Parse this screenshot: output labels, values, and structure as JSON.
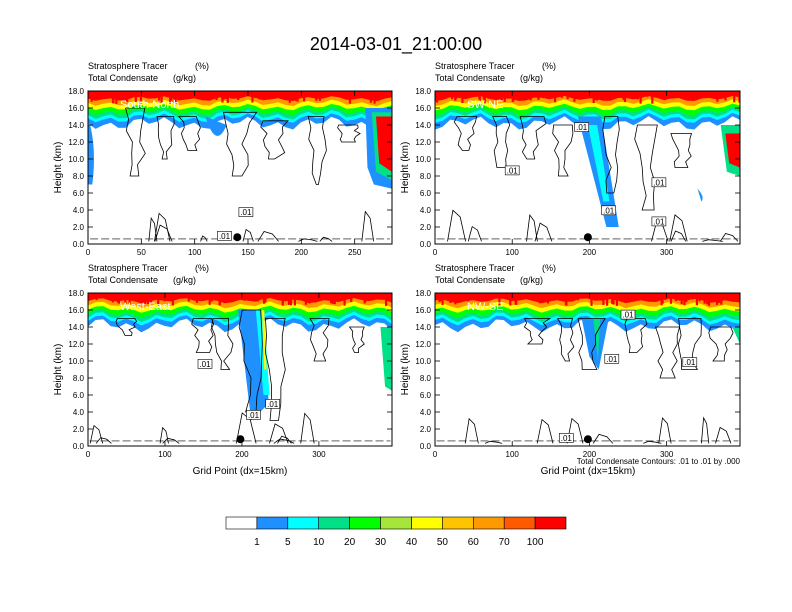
{
  "title": "2014-03-01_21:00:00",
  "footnote": "Total Condensate Contours: .01 to .01 by .000",
  "chart_data": [
    {
      "type": "heatmap",
      "panel_label": "South-North",
      "title_left_1": "Stratosphere Tracer",
      "units_1": "(%)",
      "title_left_2": "Total Condensate",
      "units_2": "(g/kg)",
      "ylabel": "Height (km)",
      "xlabel": "",
      "xlim": [
        0,
        285
      ],
      "ylim": [
        0,
        18
      ],
      "xticks": [
        0,
        50,
        100,
        150,
        200,
        250
      ],
      "yticks": [
        0,
        2,
        4,
        6,
        8,
        10,
        12,
        14,
        16,
        18
      ],
      "ytick_labels": [
        "0.0",
        "2.0",
        "4.0",
        "6.0",
        "8.0",
        "10.0",
        "12.0",
        "14.0",
        "16.0",
        "18.0"
      ],
      "contour_label_values": [
        ".01",
        ".01"
      ],
      "marker_x": 140
    },
    {
      "type": "heatmap",
      "panel_label": "SW-NE",
      "title_left_1": "Stratosphere Tracer",
      "units_1": "(%)",
      "title_left_2": "Total Condensate",
      "units_2": "(g/kg)",
      "ylabel": "Height (km)",
      "xlabel": "",
      "xlim": [
        0,
        395
      ],
      "ylim": [
        0,
        18
      ],
      "xticks": [
        0,
        100,
        200,
        300
      ],
      "yticks": [
        0,
        2,
        4,
        6,
        8,
        10,
        12,
        14,
        16,
        18
      ],
      "ytick_labels": [
        "0.0",
        "2.0",
        "4.0",
        "6.0",
        "8.0",
        "10.0",
        "12.0",
        "14.0",
        "16.0",
        "18.0"
      ],
      "contour_label_values": [
        ".01",
        ".01",
        ".01",
        ".01",
        ".01"
      ],
      "marker_x": 198
    },
    {
      "type": "heatmap",
      "panel_label": "West-East",
      "title_left_1": "Stratosphere Tracer",
      "units_1": "(%)",
      "title_left_2": "Total Condensate",
      "units_2": "(g/kg)",
      "ylabel": "Height (km)",
      "xlabel": "Grid Point (dx=15km)",
      "xlim": [
        0,
        395
      ],
      "ylim": [
        0,
        18
      ],
      "xticks": [
        0,
        100,
        200,
        300
      ],
      "yticks": [
        0,
        2,
        4,
        6,
        8,
        10,
        12,
        14,
        16,
        18
      ],
      "ytick_labels": [
        "0.0",
        "2.0",
        "4.0",
        "6.0",
        "8.0",
        "10.0",
        "12.0",
        "14.0",
        "16.0",
        "18.0"
      ],
      "contour_label_values": [
        ".01",
        ".01",
        ".01"
      ],
      "marker_x": 198
    },
    {
      "type": "heatmap",
      "panel_label": "NW-SE",
      "title_left_1": "Stratosphere Tracer",
      "units_1": "(%)",
      "title_left_2": "Total Condensate",
      "units_2": "(g/kg)",
      "ylabel": "Height (km)",
      "xlabel": "Grid Point (dx=15km)",
      "xlim": [
        0,
        395
      ],
      "ylim": [
        0,
        18
      ],
      "xticks": [
        0,
        100,
        200,
        300
      ],
      "yticks": [
        0,
        2,
        4,
        6,
        8,
        10,
        12,
        14,
        16,
        18
      ],
      "ytick_labels": [
        "0.0",
        "2.0",
        "4.0",
        "6.0",
        "8.0",
        "10.0",
        "12.0",
        "14.0",
        "16.0",
        "18.0"
      ],
      "contour_label_values": [
        ".01",
        ".01",
        ".01",
        ".01"
      ],
      "marker_x": 198
    }
  ],
  "colorbar": {
    "labels": [
      "1",
      "5",
      "10",
      "20",
      "30",
      "40",
      "50",
      "60",
      "70",
      "100"
    ],
    "colors": [
      "#ffffff",
      "#1e90ff",
      "#00ffff",
      "#00e087",
      "#00ff00",
      "#a6e63a",
      "#ffff00",
      "#ffc400",
      "#ff9900",
      "#ff5a00",
      "#ff0000"
    ]
  }
}
